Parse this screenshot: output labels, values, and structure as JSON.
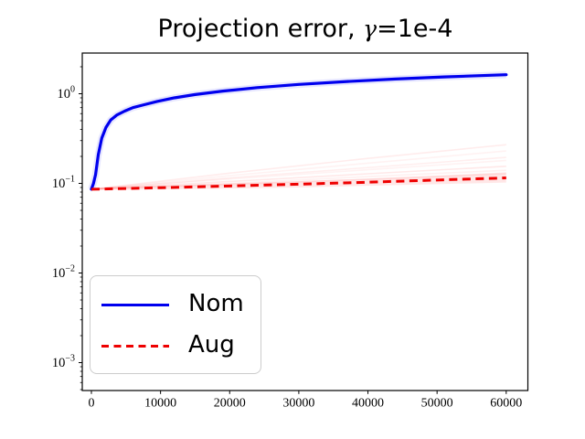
{
  "header": {
    "title_prefix": "Projection error, ",
    "title_gamma": "γ",
    "title_suffix": "=1e-4"
  },
  "colors": {
    "nom": "#0000ee",
    "aug": "#ee0000",
    "run_faint": "#ff4444",
    "band_fill": "#ff5555",
    "nom_halo": "#4444ff",
    "spine": "#000000",
    "legend_border": "#cccccc",
    "text": "#000000"
  },
  "chart_data": {
    "type": "line",
    "title": "Projection error, γ=1e-4",
    "xlabel": "",
    "ylabel": "",
    "grid": false,
    "x_scale": "linear",
    "y_scale": "log",
    "xlim": [
      -1320,
      63130
    ],
    "ylim": [
      0.00049,
      2.85
    ],
    "x_ticks": [
      0,
      10000,
      20000,
      30000,
      40000,
      50000,
      60000
    ],
    "x_tick_labels": [
      "0",
      "10000",
      "20000",
      "30000",
      "40000",
      "50000",
      "60000"
    ],
    "y_tick_exponents": [
      0,
      -1,
      -2,
      -3
    ],
    "y_tick_exponent_labels": [
      "0",
      "−1",
      "−2",
      "−3"
    ],
    "y_tick_base": "10",
    "legend": {
      "position": "lower left",
      "entries": [
        {
          "label": "Nom",
          "color": "#0000ee",
          "style": "solid"
        },
        {
          "label": "Aug",
          "color": "#ee0000",
          "style": "dashed"
        }
      ]
    },
    "series": [
      {
        "name": "Nom",
        "style": "solid",
        "width": 3.2,
        "x": [
          0,
          300,
          600,
          1000,
          1500,
          2100,
          2800,
          3700,
          4800,
          6000,
          7500,
          9500,
          12000,
          15000,
          19000,
          24000,
          30000,
          37000,
          44000,
          51000,
          60000
        ],
        "y": [
          0.086,
          0.1,
          0.125,
          0.21,
          0.32,
          0.42,
          0.51,
          0.58,
          0.64,
          0.7,
          0.75,
          0.82,
          0.9,
          0.98,
          1.07,
          1.17,
          1.27,
          1.37,
          1.46,
          1.54,
          1.63
        ]
      },
      {
        "name": "Aug",
        "style": "dashed",
        "width": 3.0,
        "x": [
          0,
          10000,
          20000,
          30000,
          40000,
          50000,
          60000
        ],
        "y": [
          0.086,
          0.0895,
          0.0935,
          0.098,
          0.103,
          0.109,
          0.115
        ]
      }
    ],
    "background_runs": [
      {
        "x": [
          0,
          20000,
          40000,
          60000
        ],
        "y": [
          0.086,
          0.13,
          0.19,
          0.27
        ],
        "opacity": 0.1
      },
      {
        "x": [
          0,
          20000,
          40000,
          60000
        ],
        "y": [
          0.086,
          0.122,
          0.168,
          0.23
        ],
        "opacity": 0.07
      },
      {
        "x": [
          0,
          20000,
          40000,
          60000
        ],
        "y": [
          0.086,
          0.115,
          0.15,
          0.195
        ],
        "opacity": 0.09
      },
      {
        "x": [
          0,
          20000,
          40000,
          60000
        ],
        "y": [
          0.086,
          0.112,
          0.142,
          0.18
        ],
        "opacity": 0.07
      },
      {
        "x": [
          0,
          20000,
          40000,
          60000
        ],
        "y": [
          0.086,
          0.105,
          0.128,
          0.155
        ],
        "opacity": 0.12
      },
      {
        "x": [
          0,
          20000,
          40000,
          60000
        ],
        "y": [
          0.086,
          0.1,
          0.119,
          0.14
        ],
        "opacity": 0.08
      },
      {
        "x": [
          0,
          20000,
          40000,
          60000
        ],
        "y": [
          0.086,
          0.097,
          0.111,
          0.128
        ],
        "opacity": 0.1
      }
    ],
    "aug_band": {
      "x": [
        0,
        10000,
        20000,
        30000,
        40000,
        50000,
        60000
      ],
      "upper": [
        0.088,
        0.094,
        0.1,
        0.106,
        0.113,
        0.122,
        0.133
      ],
      "lower": [
        0.084,
        0.0855,
        0.0875,
        0.09,
        0.094,
        0.098,
        0.102
      ],
      "opacity": 0.14
    },
    "nom_halo_opacity": 0.13
  }
}
